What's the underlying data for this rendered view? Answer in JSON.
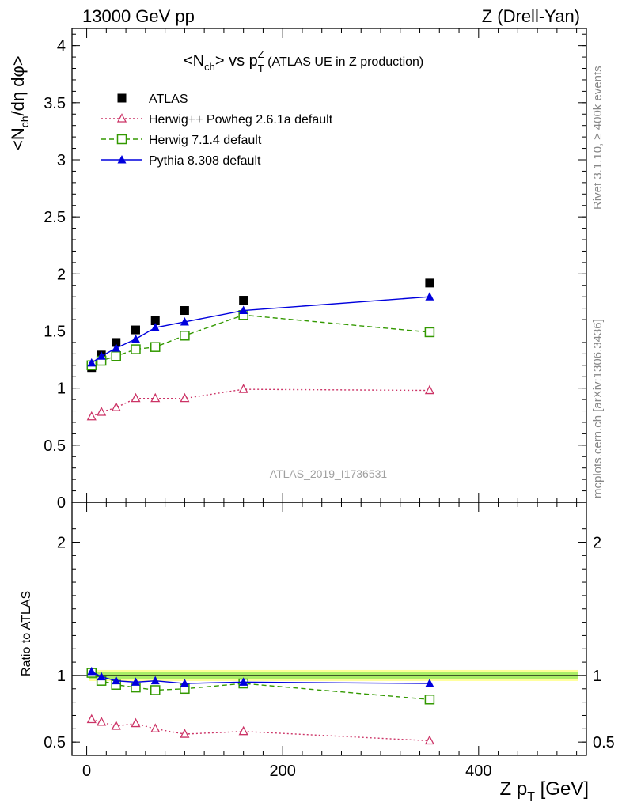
{
  "header": {
    "left": "13000 GeV pp",
    "right": "Z (Drell-Yan)"
  },
  "side_labels": {
    "top": "Rivet 3.1.10, ≥ 400k events",
    "bottom": "mcplots.cern.ch [arXiv:1306.3436]"
  },
  "plot_title": {
    "main": "<N",
    "sub": "ch",
    "mid": "> vs p",
    "sup": "Z",
    "sub2": "T",
    "rest": " (ATLAS UE in Z production)"
  },
  "watermark": "ATLAS_2019_I1736531",
  "ylabel_main": {
    "a": "<N",
    "sub": "ch",
    "b": "/dη dφ>"
  },
  "ylabel_ratio": "Ratio to ATLAS",
  "xlabel": {
    "a": "Z p",
    "sub": "T",
    "b": " [GeV]"
  },
  "chart_data": [
    {
      "type": "scatter",
      "x": [
        5,
        15,
        30,
        50,
        70,
        100,
        160,
        350
      ],
      "xlim": [
        -15,
        510
      ],
      "ylim": [
        0,
        4.15
      ],
      "yticks": [
        "0",
        "0.5",
        "1",
        "1.5",
        "2",
        "2.5",
        "3",
        "3.5",
        "4"
      ],
      "series": [
        {
          "name": "ATLAS",
          "color": "#000000",
          "marker": "square-filled",
          "line": "none",
          "values": [
            1.18,
            1.29,
            1.4,
            1.51,
            1.59,
            1.68,
            1.77,
            1.92
          ]
        },
        {
          "name": "Herwig++ Powheg 2.6.1a default",
          "color": "#cc3366",
          "marker": "triangle-open",
          "line": "dotted",
          "values": [
            0.75,
            0.79,
            0.83,
            0.91,
            0.91,
            0.91,
            0.99,
            0.98
          ]
        },
        {
          "name": "Herwig 7.1.4 default",
          "color": "#339900",
          "marker": "square-open",
          "line": "dashed",
          "values": [
            1.2,
            1.24,
            1.28,
            1.34,
            1.36,
            1.46,
            1.64,
            1.49
          ]
        },
        {
          "name": "Pythia 8.308 default",
          "color": "#0000dd",
          "marker": "triangle-filled",
          "line": "solid",
          "values": [
            1.22,
            1.28,
            1.35,
            1.43,
            1.53,
            1.58,
            1.68,
            1.8
          ]
        }
      ]
    },
    {
      "type": "scatter",
      "x": [
        5,
        15,
        30,
        50,
        70,
        100,
        160,
        350
      ],
      "xlim": [
        -15,
        510
      ],
      "ylim": [
        0.4,
        2.3
      ],
      "ytick_values": [
        0.5,
        1,
        2
      ],
      "yticks": [
        "0.5",
        "1",
        "2"
      ],
      "xticks": [
        "0",
        "200",
        "400"
      ],
      "xtick_values": [
        0,
        200,
        400
      ],
      "reference_band": {
        "value": 1.0,
        "color": "#ffff66"
      },
      "series": [
        {
          "name": "Herwig++ Powheg 2.6.1a default",
          "color": "#cc3366",
          "marker": "triangle-open",
          "line": "dotted",
          "values": [
            0.67,
            0.65,
            0.62,
            0.64,
            0.6,
            0.56,
            0.58,
            0.51
          ]
        },
        {
          "name": "Herwig 7.1.4 default",
          "color": "#339900",
          "marker": "square-open",
          "line": "dashed",
          "values": [
            1.02,
            0.96,
            0.93,
            0.91,
            0.89,
            0.9,
            0.94,
            0.82
          ]
        },
        {
          "name": "Pythia 8.308 default",
          "color": "#0000dd",
          "marker": "triangle-filled",
          "line": "solid",
          "values": [
            1.03,
            0.99,
            0.96,
            0.95,
            0.96,
            0.94,
            0.95,
            0.94
          ]
        }
      ]
    }
  ]
}
